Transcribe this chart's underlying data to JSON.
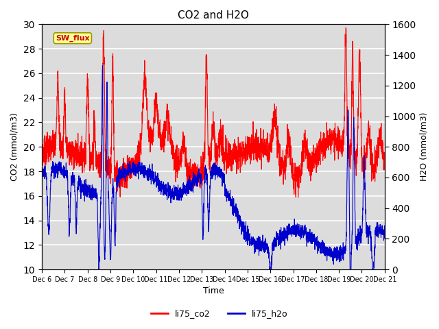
{
  "title": "CO2 and H2O",
  "xlabel": "Time",
  "ylabel_left": "CO2 (mmol/m3)",
  "ylabel_right": "H2O (mmol/m3)",
  "ylim_left": [
    10,
    30
  ],
  "ylim_right": [
    0,
    1600
  ],
  "yticks_left": [
    10,
    12,
    14,
    16,
    18,
    20,
    22,
    24,
    26,
    28,
    30
  ],
  "yticks_right": [
    0,
    200,
    400,
    600,
    800,
    1000,
    1200,
    1400,
    1600
  ],
  "xtick_labels": [
    "Dec 6",
    "Dec 7",
    "Dec 8",
    "Dec 9",
    "Dec 10",
    "Dec 11",
    "Dec 12",
    "Dec 13",
    "Dec 14",
    "Dec 15",
    "Dec 16",
    "Dec 17",
    "Dec 18",
    "Dec 19",
    "Dec 20",
    "Dec 21"
  ],
  "color_co2": "#FF0000",
  "color_h2o": "#0000CC",
  "legend_co2": "li75_co2",
  "legend_h2o": "li75_h2o",
  "sw_flux_label": "SW_flux",
  "background_color": "#DCDCDC",
  "fig_background": "#FFFFFF",
  "annotation_box_facecolor": "#FFFF99",
  "annotation_box_edgecolor": "#999900",
  "annotation_text_color": "#CC0000",
  "linewidth_co2": 0.8,
  "linewidth_h2o": 0.8
}
